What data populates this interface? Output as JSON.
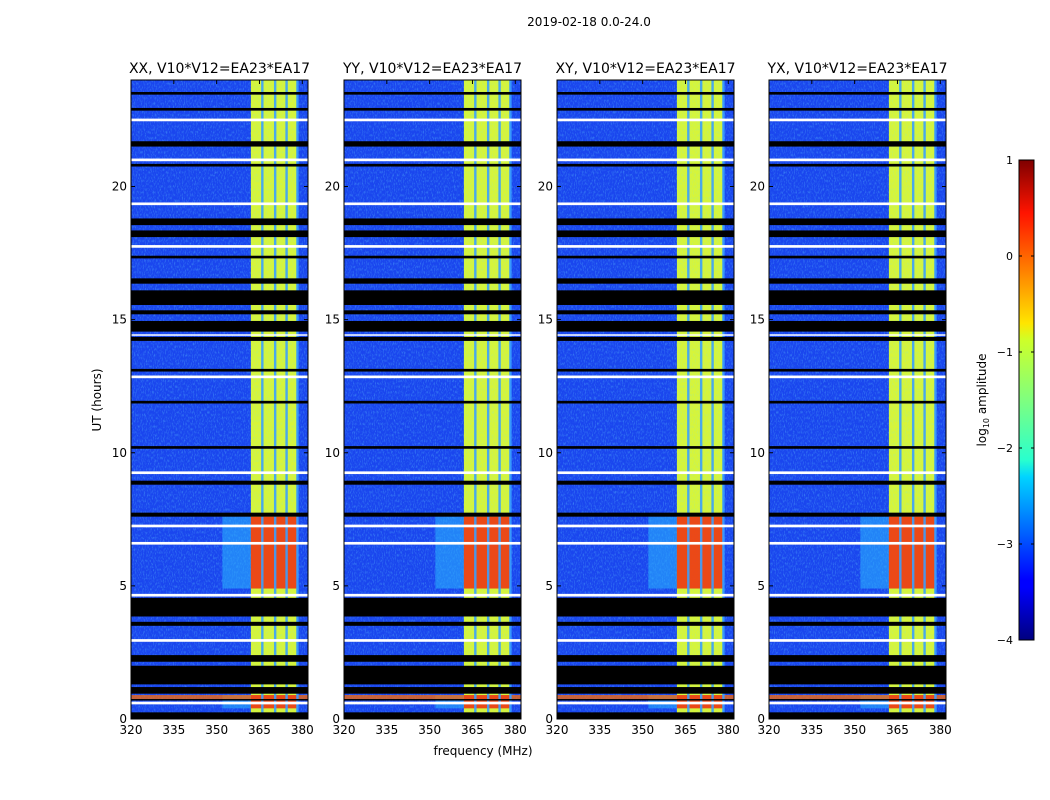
{
  "chart_data": {
    "type": "heatmap",
    "suptitle": "2019-02-18 0.0-24.0",
    "xlabel": "frequency (MHz)",
    "ylabel": "UT (hours)",
    "xlim": [
      320,
      382
    ],
    "ylim": [
      0,
      24
    ],
    "x_ticks": [
      320,
      335,
      350,
      365,
      380
    ],
    "y_ticks": [
      0,
      5,
      10,
      15,
      20
    ],
    "colorbar": {
      "label_prefix": "log",
      "label_sub": "10",
      "label_suffix": " amplitude",
      "range": [
        -4,
        1
      ],
      "ticks": [
        1,
        0,
        -1,
        -2,
        -3,
        -4
      ],
      "tick_labels": [
        "1",
        "0",
        "−1",
        "−2",
        "−3",
        "−4"
      ],
      "colormap": "jet"
    },
    "panels": [
      {
        "title": "XX, V10*V12=EA23*EA17"
      },
      {
        "title": "YY, V10*V12=EA23*EA17"
      },
      {
        "title": "XY, V10*V12=EA23*EA17"
      },
      {
        "title": "YX, V10*V12=EA23*EA17"
      }
    ],
    "flagged_black_hours": [
      [
        0.0,
        0.25
      ],
      [
        0.7,
        0.75
      ],
      [
        0.95,
        1.2
      ],
      [
        1.3,
        2.0
      ],
      [
        2.15,
        2.4
      ],
      [
        3.5,
        3.65
      ],
      [
        3.85,
        4.55
      ],
      [
        7.6,
        7.75
      ],
      [
        8.8,
        8.95
      ],
      [
        10.15,
        10.25
      ],
      [
        11.85,
        11.95
      ],
      [
        13.05,
        13.15
      ],
      [
        14.2,
        14.35
      ],
      [
        14.55,
        14.95
      ],
      [
        15.2,
        15.35
      ],
      [
        15.55,
        16.1
      ],
      [
        16.35,
        16.55
      ],
      [
        17.3,
        17.4
      ],
      [
        18.1,
        18.35
      ],
      [
        18.55,
        18.8
      ],
      [
        20.75,
        20.85
      ],
      [
        21.5,
        21.7
      ],
      [
        22.85,
        22.95
      ],
      [
        23.45,
        23.55
      ]
    ],
    "flagged_white_hours": [
      [
        0.55,
        0.65
      ],
      [
        2.9,
        3.0
      ],
      [
        4.6,
        4.7
      ],
      [
        6.55,
        6.65
      ],
      [
        7.2,
        7.3
      ],
      [
        9.2,
        9.3
      ],
      [
        12.8,
        12.9
      ],
      [
        14.4,
        14.45
      ],
      [
        17.7,
        17.8
      ],
      [
        19.3,
        19.4
      ],
      [
        20.95,
        21.05
      ],
      [
        22.45,
        22.55
      ]
    ],
    "strong_band_hours": [
      [
        0.4,
        0.9
      ],
      [
        4.9,
        7.6
      ]
    ],
    "bright_band_mhz": [
      362,
      378
    ],
    "channel_gap_mhz": [
      366,
      370.5,
      374.5,
      378.3
    ]
  }
}
